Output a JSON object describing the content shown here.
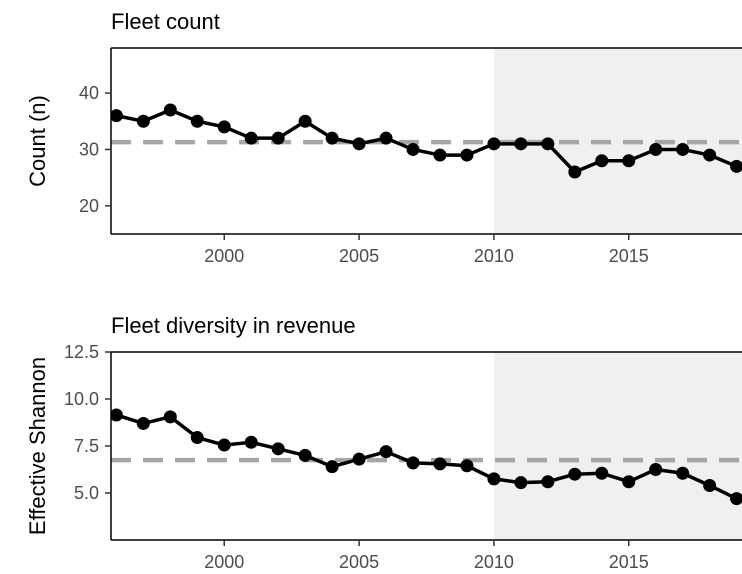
{
  "chart_data": [
    {
      "type": "line",
      "title": "Fleet count",
      "xlabel": "",
      "ylabel": "Count (n)",
      "xlim": [
        1995.8,
        2019.2
      ],
      "ylim": [
        15,
        48
      ],
      "x_ticks": [
        2000,
        2005,
        2010,
        2015
      ],
      "y_ticks": [
        20,
        30,
        40
      ],
      "shaded_region": [
        2010,
        2019.2
      ],
      "reference_line": 31.3,
      "grid": false,
      "x": [
        1996,
        1997,
        1998,
        1999,
        2000,
        2001,
        2002,
        2003,
        2004,
        2005,
        2006,
        2007,
        2008,
        2009,
        2010,
        2011,
        2012,
        2013,
        2014,
        2015,
        2016,
        2017,
        2018,
        2019
      ],
      "y": [
        36,
        35,
        37,
        35,
        34,
        32,
        32,
        35,
        32,
        31,
        32,
        30,
        29,
        29,
        31,
        31,
        31,
        26,
        28,
        28,
        30,
        30,
        29,
        27
      ]
    },
    {
      "type": "line",
      "title": "Fleet diversity in revenue",
      "xlabel": "",
      "ylabel": "Effective Shannon",
      "xlim": [
        1995.8,
        2019.2
      ],
      "ylim": [
        2.5,
        12.5
      ],
      "x_ticks": [
        2000,
        2005,
        2010,
        2015
      ],
      "y_ticks": [
        5.0,
        7.5,
        10.0,
        12.5
      ],
      "y_tick_labels": [
        "5.0",
        "7.5",
        "10.0",
        "12.5"
      ],
      "shaded_region": [
        2010,
        2019.2
      ],
      "reference_line": 6.75,
      "grid": false,
      "x": [
        1996,
        1997,
        1998,
        1999,
        2000,
        2001,
        2002,
        2003,
        2004,
        2005,
        2006,
        2007,
        2008,
        2009,
        2010,
        2011,
        2012,
        2013,
        2014,
        2015,
        2016,
        2017,
        2018,
        2019
      ],
      "y": [
        9.15,
        8.7,
        9.05,
        7.95,
        7.55,
        7.7,
        7.35,
        7.0,
        6.4,
        6.8,
        7.2,
        6.6,
        6.55,
        6.45,
        5.75,
        5.55,
        5.6,
        6.0,
        6.05,
        5.6,
        6.25,
        6.05,
        5.4,
        4.7
      ]
    }
  ],
  "colors": {
    "line": "#000000",
    "reference": "#a6a6a6",
    "shade": "#f0f0f0",
    "tick_text": "#4d4d4d"
  }
}
